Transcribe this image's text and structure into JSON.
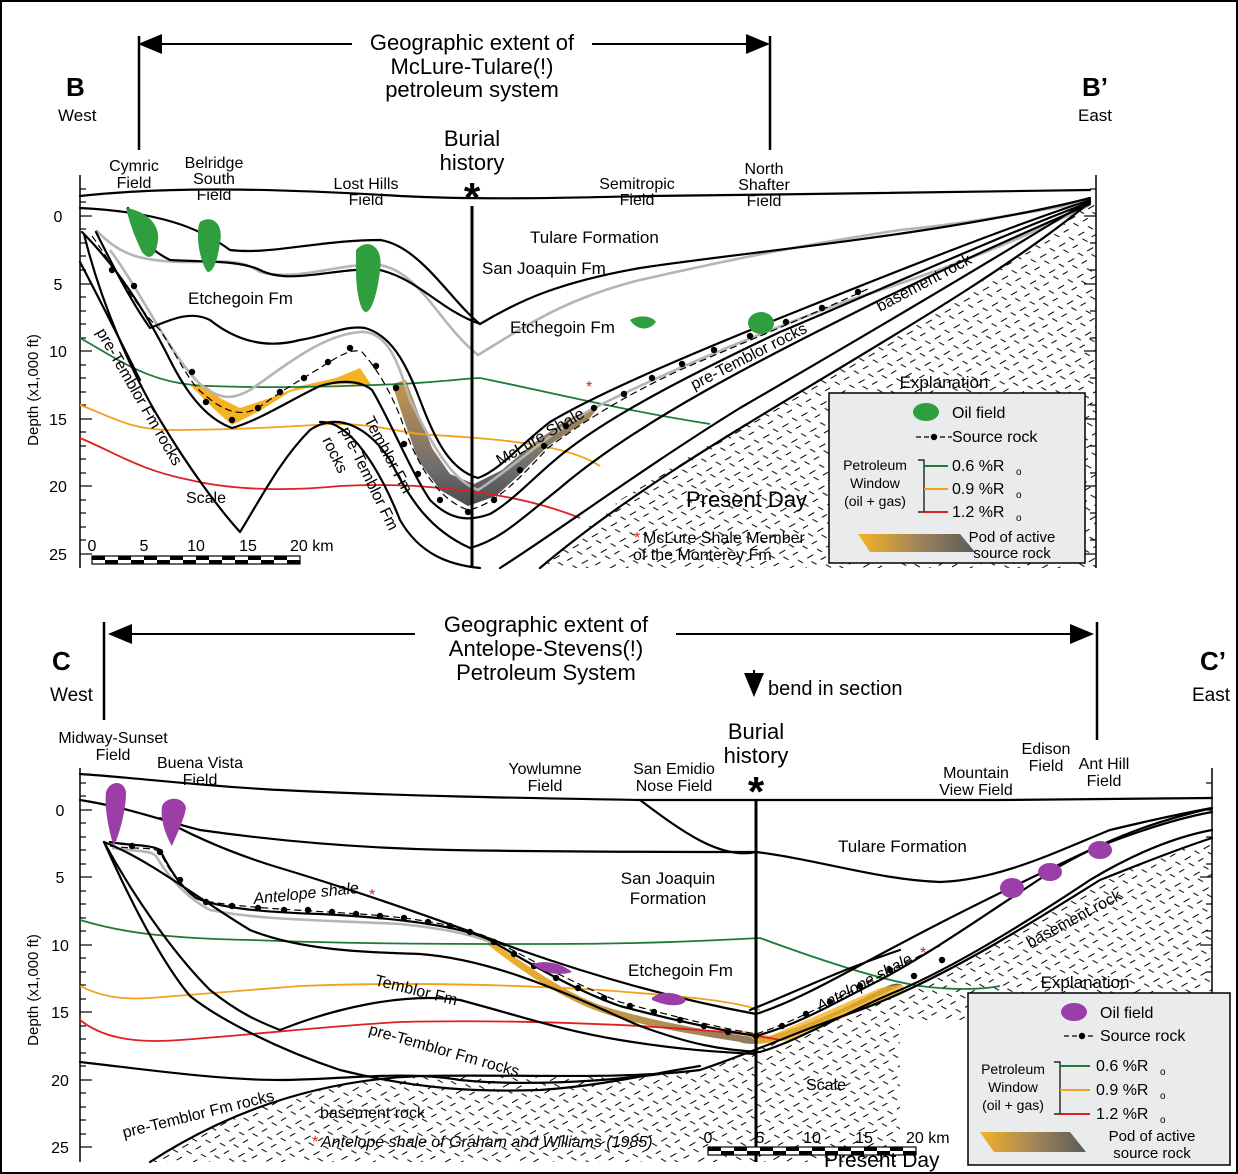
{
  "panel_b": {
    "end_left": "B",
    "end_right": "B’",
    "dir_left": "West",
    "dir_right": "East",
    "extent_line1": "Geographic extent of",
    "extent_line2": "McLure-Tulare(!)",
    "extent_line3": "petroleum system",
    "burial_line1": "Burial",
    "burial_line2": "history",
    "star": "*",
    "fields": [
      {
        "l1": "Cymric",
        "l2": "Field"
      },
      {
        "l1": "Belridge",
        "l2": "South",
        "l3": "Field"
      },
      {
        "l1": "Lost Hills",
        "l2": "Field"
      },
      {
        "l1": "Semitropic",
        "l2": "Field"
      },
      {
        "l1": "North",
        "l2": "Shafter",
        "l3": "Field"
      }
    ],
    "y_axis_label": "Depth (x1,000 ft)",
    "y_ticks": [
      "0",
      "5",
      "10",
      "15",
      "20",
      "25"
    ],
    "units": {
      "tulare": "Tulare Formation",
      "san_joaquin": "San Joaquin Fm",
      "etchegoin_west": "Etchegoin Fm",
      "etchegoin_east": "Etchegoin Fm",
      "basement": "basement rock",
      "pre_temblor_east": "pre-Temblor rocks",
      "pre_temblor_west_1": "pre-Temblor Fm rocks",
      "temblor": "Temblor Fm",
      "pre_temblor_mid_1": "pre-Temblor Fm",
      "pre_temblor_mid_2": "rocks",
      "mclure": "McLure Shale",
      "mclure_mark": "*"
    },
    "scale": {
      "title": "Scale",
      "ticks": [
        "0",
        "5",
        "10",
        "15",
        "20 km"
      ]
    },
    "footnote_mark": "*",
    "footnote_line1": "McLure Shale Member",
    "footnote_line2": "of the Monterey Fm",
    "present_day": "Present Day",
    "legend": {
      "title": "Explanation",
      "oil_field": "Oil field",
      "source_rock": "Source rock",
      "window_l1": "Petroleum",
      "window_l2": "Window",
      "window_l3": "(oil + gas)",
      "ro_06": "0.6 %R",
      "ro_09": "0.9 %R",
      "ro_12": "1.2 %R",
      "ro_sub": "o",
      "pod_l1": "Pod of active",
      "pod_l2": "source rock",
      "oil_color": "#2e9e3e"
    }
  },
  "panel_c": {
    "end_left": "C",
    "end_right": "C’",
    "dir_left": "West",
    "dir_right": "East",
    "extent_line1": "Geographic extent of",
    "extent_line2": "Antelope-Stevens(!)",
    "extent_line3": "Petroleum System",
    "bend": "bend in section",
    "burial_line1": "Burial",
    "burial_line2": "history",
    "star": "*",
    "fields": [
      {
        "l1": "Midway-Sunset",
        "l2": "Field"
      },
      {
        "l1": "Buena Vista",
        "l2": "Field"
      },
      {
        "l1": "Yowlumne",
        "l2": "Field"
      },
      {
        "l1": "San Emidio",
        "l2": "Nose Field"
      },
      {
        "l1": "Mountain",
        "l2": "View Field"
      },
      {
        "l1": "Edison",
        "l2": "Field"
      },
      {
        "l1": "Ant Hill",
        "l2": "Field"
      }
    ],
    "y_axis_label": "Depth (x1,000 ft)",
    "y_ticks": [
      "0",
      "5",
      "10",
      "15",
      "20",
      "25"
    ],
    "units": {
      "tulare": "Tulare Formation",
      "san_joaquin_1": "San Joaquin",
      "san_joaquin_2": "Formation",
      "etchegoin": "Etchegoin Fm",
      "antelope_west": "Antelope shale",
      "antelope_east": "Antelope shale",
      "antelope_mark": "*",
      "temblor": "Temblor Fm",
      "pre_temblor_mid": "pre-Temblor Fm rocks",
      "pre_temblor_west": "pre-Temblor Fm rocks",
      "basement_west": "basement rock",
      "basement_east": "basement rock"
    },
    "scale": {
      "title": "Scale",
      "ticks": [
        "0",
        "5",
        "10",
        "15",
        "20 km"
      ]
    },
    "footnote_mark": "*",
    "footnote": "Antelope shale of Graham and Williams (1985)",
    "present_day": "Present Day",
    "legend": {
      "title": "Explanation",
      "oil_field": "Oil field",
      "source_rock": "Source rock",
      "window_l1": "Petroleum",
      "window_l2": "Window",
      "window_l3": "(oil + gas)",
      "ro_06": "0.6 %R",
      "ro_09": "0.9 %R",
      "ro_12": "1.2 %R",
      "ro_sub": "o",
      "pod_l1": "Pod of active",
      "pod_l2": "source rock",
      "oil_color": "#9b3ea8"
    }
  },
  "colors": {
    "ro_06": "#1f7a35",
    "ro_09": "#f2a01e",
    "ro_12": "#e02020",
    "pod_yellow": "#f5b324",
    "pod_gray": "#6d6d6d",
    "legend_bg": "#e9ebec"
  }
}
